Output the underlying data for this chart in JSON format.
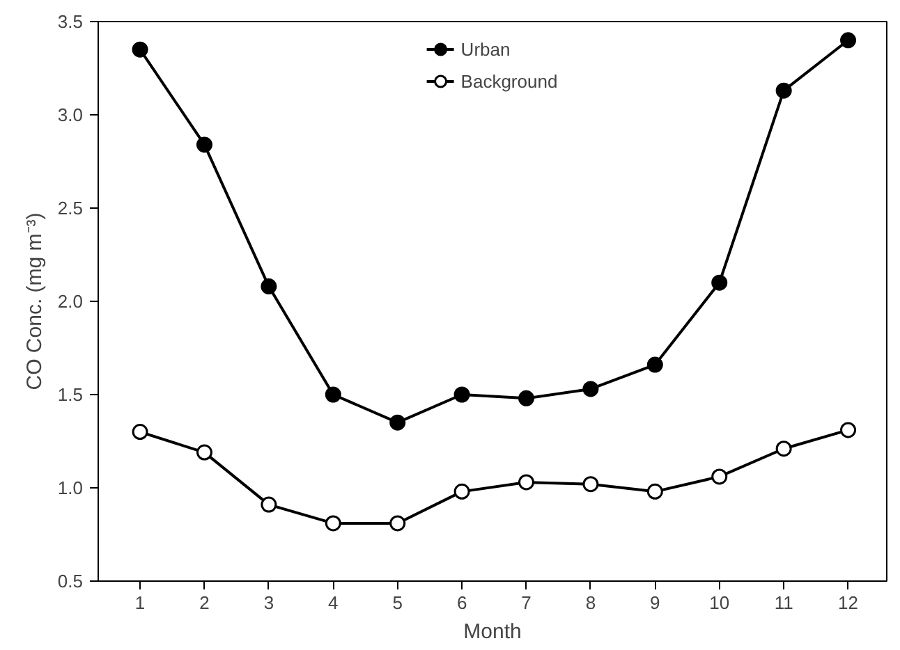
{
  "chart_data": {
    "type": "line",
    "xlabel": "Month",
    "ylabel": "CO Conc. (mg m⁻³)",
    "x": [
      1,
      2,
      3,
      4,
      5,
      6,
      7,
      8,
      9,
      10,
      11,
      12
    ],
    "series": [
      {
        "name": "Urban",
        "color": "#000000",
        "values": [
          3.35,
          2.84,
          2.08,
          1.5,
          1.35,
          1.5,
          1.48,
          1.53,
          1.66,
          2.1,
          3.13,
          3.4
        ]
      },
      {
        "name": "Background",
        "color": "#ffffff",
        "values": [
          1.3,
          1.19,
          0.91,
          0.81,
          0.81,
          0.98,
          1.03,
          1.02,
          0.98,
          1.06,
          1.21,
          1.31
        ]
      }
    ],
    "xlim": [
      0.35,
      12.6
    ],
    "ylim": [
      0.5,
      3.5
    ],
    "xticks": [
      1,
      2,
      3,
      4,
      5,
      6,
      7,
      8,
      9,
      10,
      11,
      12
    ],
    "yticks": [
      {
        "value": 0.5,
        "label": "0.5"
      },
      {
        "value": 1.0,
        "label": "1.0"
      },
      {
        "value": 1.5,
        "label": "1.5"
      },
      {
        "value": 2.0,
        "label": "2.0"
      },
      {
        "value": 2.5,
        "label": "2.5"
      },
      {
        "value": 3.0,
        "label": "3.0"
      },
      {
        "value": 3.5,
        "label": "3.5"
      }
    ],
    "marker": "circle",
    "line_style": "solid",
    "grid": false,
    "legend": "top"
  }
}
